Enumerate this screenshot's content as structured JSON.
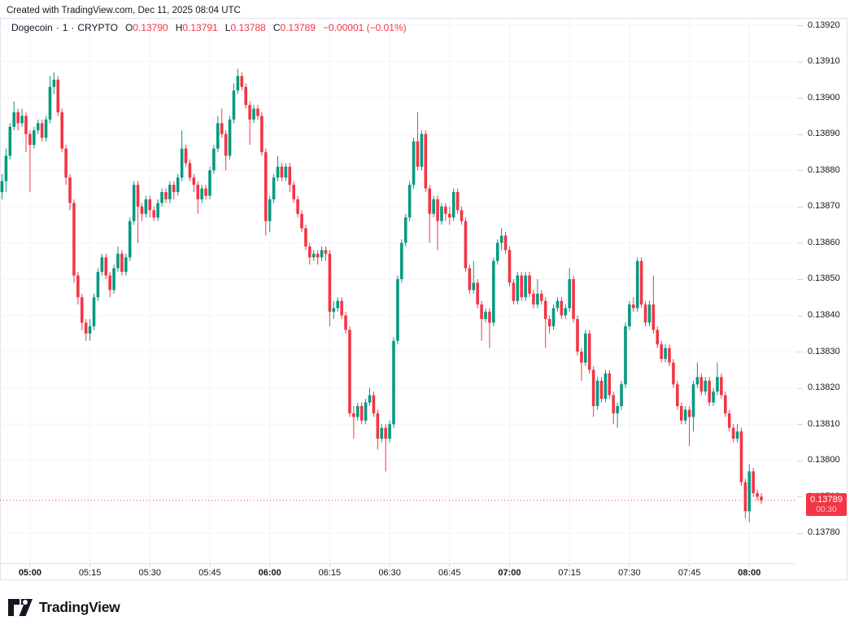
{
  "header": {
    "credit": "Created with TradingView.com, Dec 11, 2025 08:04 UTC"
  },
  "legend": {
    "symbol": "Dogecoin",
    "sep": "·",
    "interval": "1",
    "exchange": "CRYPTO",
    "o_label": "O",
    "o_value": "0.13790",
    "h_label": "H",
    "h_value": "0.13791",
    "l_label": "L",
    "l_value": "0.13788",
    "c_label": "C",
    "c_value": "0.13789",
    "change": "−0.00001 (−0.01%)"
  },
  "colors": {
    "up": "#089981",
    "down": "#F23645",
    "grid": "#F0F3FA",
    "tick": "#D1D4DC",
    "separator": "#E0E3EB",
    "text": "#131722",
    "price_line": "#F23645",
    "label_bg": "#F23645",
    "label_text": "#FFFFFF",
    "background": "#FFFFFF"
  },
  "price_axis": {
    "labels": [
      "0.13920",
      "0.13910",
      "0.13900",
      "0.13890",
      "0.13880",
      "0.13870",
      "0.13860",
      "0.13850",
      "0.13840",
      "0.13830",
      "0.13820",
      "0.13810",
      "0.13800",
      "0.13790",
      "0.13780"
    ]
  },
  "time_axis": {
    "labels": [
      {
        "text": "05:00",
        "bold": true
      },
      {
        "text": "05:15",
        "bold": false
      },
      {
        "text": "05:30",
        "bold": false
      },
      {
        "text": "05:45",
        "bold": false
      },
      {
        "text": "06:00",
        "bold": true
      },
      {
        "text": "06:15",
        "bold": false
      },
      {
        "text": "06:30",
        "bold": false
      },
      {
        "text": "06:45",
        "bold": false
      },
      {
        "text": "07:00",
        "bold": true
      },
      {
        "text": "07:15",
        "bold": false
      },
      {
        "text": "07:30",
        "bold": false
      },
      {
        "text": "07:45",
        "bold": false
      },
      {
        "text": "08:00",
        "bold": true
      }
    ]
  },
  "price_label": {
    "price": "0.13789",
    "countdown": "00:30"
  },
  "logo": {
    "text": "TradingView"
  },
  "chart_data": {
    "type": "candlestick",
    "title": "Dogecoin · 1 · CRYPTO",
    "symbol": "Dogecoin",
    "exchange": "CRYPTO",
    "interval": "1m",
    "start_time": "04:53",
    "end_time": "08:03",
    "ylim": [
      0.1378,
      0.1392
    ],
    "y_step": 0.0001,
    "grid": true,
    "price_line": 0.13789,
    "last_bar": {
      "open": 0.1379,
      "high": 0.13791,
      "low": 0.13788,
      "close": 0.13789
    },
    "candles_format": [
      "open",
      "high",
      "low",
      "close"
    ],
    "candles": [
      [
        0.13874,
        0.13879,
        0.13872,
        0.13877
      ],
      [
        0.13877,
        0.13886,
        0.13874,
        0.13884
      ],
      [
        0.13884,
        0.13893,
        0.13883,
        0.13892
      ],
      [
        0.13892,
        0.13899,
        0.13891,
        0.13896
      ],
      [
        0.13896,
        0.13897,
        0.13891,
        0.13893
      ],
      [
        0.13893,
        0.13897,
        0.13892,
        0.13895
      ],
      [
        0.13895,
        0.13896,
        0.13885,
        0.1389
      ],
      [
        0.1389,
        0.13891,
        0.13874,
        0.13887
      ],
      [
        0.13887,
        0.13892,
        0.13886,
        0.13891
      ],
      [
        0.13891,
        0.13894,
        0.1389,
        0.13893
      ],
      [
        0.13893,
        0.13894,
        0.13888,
        0.13889
      ],
      [
        0.13889,
        0.13895,
        0.13888,
        0.13894
      ],
      [
        0.13894,
        0.13906,
        0.13893,
        0.13903
      ],
      [
        0.13903,
        0.13907,
        0.13901,
        0.13905
      ],
      [
        0.13905,
        0.13906,
        0.13895,
        0.13896
      ],
      [
        0.13896,
        0.13897,
        0.13885,
        0.13886
      ],
      [
        0.13886,
        0.13887,
        0.13876,
        0.13878
      ],
      [
        0.13878,
        0.13879,
        0.13869,
        0.13871
      ],
      [
        0.13871,
        0.13872,
        0.13849,
        0.13851
      ],
      [
        0.13851,
        0.13852,
        0.13843,
        0.13845
      ],
      [
        0.13845,
        0.13846,
        0.13836,
        0.13838
      ],
      [
        0.13838,
        0.13839,
        0.13833,
        0.13835
      ],
      [
        0.13835,
        0.13839,
        0.13833,
        0.13837
      ],
      [
        0.13837,
        0.13846,
        0.13836,
        0.13845
      ],
      [
        0.13845,
        0.13853,
        0.13844,
        0.13852
      ],
      [
        0.13852,
        0.13857,
        0.13851,
        0.13856
      ],
      [
        0.13856,
        0.13857,
        0.1385,
        0.13851
      ],
      [
        0.13851,
        0.13852,
        0.13845,
        0.13847
      ],
      [
        0.13847,
        0.13854,
        0.13846,
        0.13853
      ],
      [
        0.13853,
        0.13859,
        0.13852,
        0.13857
      ],
      [
        0.13857,
        0.13858,
        0.13851,
        0.13852
      ],
      [
        0.13852,
        0.13857,
        0.13851,
        0.13856
      ],
      [
        0.13856,
        0.13867,
        0.13855,
        0.13866
      ],
      [
        0.13866,
        0.13877,
        0.13865,
        0.13876
      ],
      [
        0.13876,
        0.13877,
        0.1386,
        0.1387
      ],
      [
        0.1387,
        0.13871,
        0.13866,
        0.13868
      ],
      [
        0.13868,
        0.13873,
        0.13867,
        0.13872
      ],
      [
        0.13872,
        0.13873,
        0.13867,
        0.13869
      ],
      [
        0.13869,
        0.1387,
        0.13866,
        0.13867
      ],
      [
        0.13867,
        0.13872,
        0.13866,
        0.13871
      ],
      [
        0.13871,
        0.13875,
        0.1387,
        0.13874
      ],
      [
        0.13874,
        0.13875,
        0.13871,
        0.13872
      ],
      [
        0.13872,
        0.13877,
        0.13871,
        0.13876
      ],
      [
        0.13876,
        0.13877,
        0.13872,
        0.13874
      ],
      [
        0.13874,
        0.13879,
        0.13873,
        0.13878
      ],
      [
        0.13878,
        0.13891,
        0.13877,
        0.13886
      ],
      [
        0.13886,
        0.13887,
        0.13881,
        0.13882
      ],
      [
        0.13882,
        0.13883,
        0.13877,
        0.13878
      ],
      [
        0.13878,
        0.13879,
        0.13874,
        0.13876
      ],
      [
        0.13876,
        0.13877,
        0.13868,
        0.13872
      ],
      [
        0.13872,
        0.13876,
        0.13871,
        0.13875
      ],
      [
        0.13875,
        0.13876,
        0.13872,
        0.13873
      ],
      [
        0.13873,
        0.13881,
        0.13872,
        0.1388
      ],
      [
        0.1388,
        0.13887,
        0.13879,
        0.13886
      ],
      [
        0.13886,
        0.13895,
        0.13885,
        0.13893
      ],
      [
        0.13893,
        0.13897,
        0.13889,
        0.1389
      ],
      [
        0.1389,
        0.13891,
        0.1388,
        0.13884
      ],
      [
        0.13884,
        0.13895,
        0.13883,
        0.13894
      ],
      [
        0.13894,
        0.13904,
        0.13893,
        0.13902
      ],
      [
        0.13902,
        0.13908,
        0.13901,
        0.13906
      ],
      [
        0.13906,
        0.13907,
        0.13902,
        0.13903
      ],
      [
        0.13903,
        0.13904,
        0.13897,
        0.13898
      ],
      [
        0.13898,
        0.13899,
        0.13887,
        0.13894
      ],
      [
        0.13894,
        0.13898,
        0.13893,
        0.13897
      ],
      [
        0.13897,
        0.13898,
        0.13894,
        0.13895
      ],
      [
        0.13895,
        0.13896,
        0.13884,
        0.13885
      ],
      [
        0.13885,
        0.13886,
        0.13862,
        0.13866
      ],
      [
        0.13866,
        0.13873,
        0.13863,
        0.13872
      ],
      [
        0.13872,
        0.13879,
        0.13871,
        0.13878
      ],
      [
        0.13878,
        0.13884,
        0.13877,
        0.13881
      ],
      [
        0.13881,
        0.13882,
        0.13877,
        0.13878
      ],
      [
        0.13878,
        0.13882,
        0.13877,
        0.13881
      ],
      [
        0.13881,
        0.13882,
        0.13874,
        0.13876
      ],
      [
        0.13876,
        0.13877,
        0.13871,
        0.13872
      ],
      [
        0.13872,
        0.13873,
        0.13867,
        0.13868
      ],
      [
        0.13868,
        0.13869,
        0.13863,
        0.13864
      ],
      [
        0.13864,
        0.13865,
        0.13858,
        0.13859
      ],
      [
        0.13859,
        0.1386,
        0.13854,
        0.13856
      ],
      [
        0.13856,
        0.13858,
        0.13855,
        0.13857
      ],
      [
        0.13857,
        0.13858,
        0.13854,
        0.13856
      ],
      [
        0.13856,
        0.13859,
        0.13855,
        0.13858
      ],
      [
        0.13858,
        0.13859,
        0.13855,
        0.13857
      ],
      [
        0.13857,
        0.13858,
        0.13837,
        0.13841
      ],
      [
        0.13841,
        0.13844,
        0.13839,
        0.13842
      ],
      [
        0.13842,
        0.13845,
        0.13841,
        0.13844
      ],
      [
        0.13844,
        0.13845,
        0.13839,
        0.1384
      ],
      [
        0.1384,
        0.13841,
        0.13835,
        0.13836
      ],
      [
        0.13836,
        0.13837,
        0.13812,
        0.13813
      ],
      [
        0.13813,
        0.13815,
        0.13806,
        0.13812
      ],
      [
        0.13812,
        0.13816,
        0.13811,
        0.13815
      ],
      [
        0.13815,
        0.13816,
        0.1381,
        0.13811
      ],
      [
        0.13811,
        0.13817,
        0.1381,
        0.13816
      ],
      [
        0.13816,
        0.1382,
        0.13815,
        0.13818
      ],
      [
        0.13818,
        0.13819,
        0.13812,
        0.13813
      ],
      [
        0.13813,
        0.13814,
        0.13803,
        0.13806
      ],
      [
        0.13806,
        0.1381,
        0.13805,
        0.13809
      ],
      [
        0.13809,
        0.1381,
        0.13797,
        0.13806
      ],
      [
        0.13806,
        0.13811,
        0.13805,
        0.1381
      ],
      [
        0.1381,
        0.13834,
        0.13809,
        0.13833
      ],
      [
        0.13833,
        0.13851,
        0.13832,
        0.1385
      ],
      [
        0.1385,
        0.13861,
        0.13849,
        0.1386
      ],
      [
        0.1386,
        0.13868,
        0.13859,
        0.13867
      ],
      [
        0.13867,
        0.13877,
        0.13866,
        0.13876
      ],
      [
        0.13876,
        0.13889,
        0.13875,
        0.13888
      ],
      [
        0.13888,
        0.13896,
        0.1388,
        0.13881
      ],
      [
        0.13881,
        0.13891,
        0.1388,
        0.1389
      ],
      [
        0.1389,
        0.13891,
        0.13874,
        0.13875
      ],
      [
        0.13875,
        0.13876,
        0.1386,
        0.13868
      ],
      [
        0.13868,
        0.13873,
        0.13867,
        0.13872
      ],
      [
        0.13872,
        0.13873,
        0.13858,
        0.13866
      ],
      [
        0.13866,
        0.13871,
        0.13865,
        0.1387
      ],
      [
        0.1387,
        0.13871,
        0.13866,
        0.13868
      ],
      [
        0.13868,
        0.1387,
        0.13865,
        0.13867
      ],
      [
        0.13867,
        0.13875,
        0.13866,
        0.13874
      ],
      [
        0.13874,
        0.13875,
        0.13868,
        0.13869
      ],
      [
        0.13869,
        0.1387,
        0.13865,
        0.13866
      ],
      [
        0.13866,
        0.13867,
        0.13852,
        0.13853
      ],
      [
        0.13853,
        0.13854,
        0.13846,
        0.13847
      ],
      [
        0.13847,
        0.13855,
        0.13846,
        0.13849
      ],
      [
        0.13849,
        0.1385,
        0.13842,
        0.13843
      ],
      [
        0.13843,
        0.13844,
        0.13833,
        0.13839
      ],
      [
        0.13839,
        0.13842,
        0.13838,
        0.13841
      ],
      [
        0.13841,
        0.13842,
        0.13831,
        0.13838
      ],
      [
        0.13838,
        0.13856,
        0.13837,
        0.13855
      ],
      [
        0.13855,
        0.13861,
        0.13854,
        0.1386
      ],
      [
        0.1386,
        0.13864,
        0.13858,
        0.13862
      ],
      [
        0.13862,
        0.13863,
        0.13857,
        0.13858
      ],
      [
        0.13858,
        0.13859,
        0.13848,
        0.13849
      ],
      [
        0.13849,
        0.1385,
        0.13843,
        0.13844
      ],
      [
        0.13844,
        0.13852,
        0.13843,
        0.13851
      ],
      [
        0.13851,
        0.13852,
        0.13844,
        0.13845
      ],
      [
        0.13845,
        0.13852,
        0.13844,
        0.13851
      ],
      [
        0.13851,
        0.13852,
        0.13845,
        0.13846
      ],
      [
        0.13846,
        0.13847,
        0.13842,
        0.13843
      ],
      [
        0.13843,
        0.1385,
        0.13842,
        0.13846
      ],
      [
        0.13846,
        0.13847,
        0.13843,
        0.13844
      ],
      [
        0.13844,
        0.13845,
        0.13831,
        0.13839
      ],
      [
        0.13839,
        0.1384,
        0.13835,
        0.13837
      ],
      [
        0.13837,
        0.13843,
        0.13836,
        0.13842
      ],
      [
        0.13842,
        0.13845,
        0.13841,
        0.13844
      ],
      [
        0.13844,
        0.13845,
        0.13839,
        0.1384
      ],
      [
        0.1384,
        0.13843,
        0.13839,
        0.13842
      ],
      [
        0.13842,
        0.13853,
        0.13841,
        0.1385
      ],
      [
        0.1385,
        0.13851,
        0.13838,
        0.13839
      ],
      [
        0.13839,
        0.1384,
        0.13829,
        0.1383
      ],
      [
        0.1383,
        0.13831,
        0.13822,
        0.13827
      ],
      [
        0.13827,
        0.13836,
        0.13826,
        0.13835
      ],
      [
        0.13835,
        0.13836,
        0.13824,
        0.13825
      ],
      [
        0.13825,
        0.13826,
        0.13812,
        0.13815
      ],
      [
        0.13815,
        0.13823,
        0.13814,
        0.13822
      ],
      [
        0.13822,
        0.13823,
        0.13816,
        0.13817
      ],
      [
        0.13817,
        0.13825,
        0.13816,
        0.13824
      ],
      [
        0.13824,
        0.13825,
        0.13817,
        0.13818
      ],
      [
        0.13818,
        0.13819,
        0.1381,
        0.13813
      ],
      [
        0.13813,
        0.13816,
        0.13809,
        0.13815
      ],
      [
        0.13815,
        0.13822,
        0.13814,
        0.13821
      ],
      [
        0.13821,
        0.13838,
        0.1382,
        0.13837
      ],
      [
        0.13837,
        0.13844,
        0.13836,
        0.13843
      ],
      [
        0.13843,
        0.13845,
        0.13841,
        0.13842
      ],
      [
        0.13842,
        0.13856,
        0.13841,
        0.13855
      ],
      [
        0.13855,
        0.13856,
        0.13842,
        0.13843
      ],
      [
        0.13843,
        0.13844,
        0.13837,
        0.13838
      ],
      [
        0.13838,
        0.13844,
        0.13837,
        0.13843
      ],
      [
        0.13843,
        0.13851,
        0.13835,
        0.13836
      ],
      [
        0.13836,
        0.13837,
        0.13831,
        0.13832
      ],
      [
        0.13832,
        0.13833,
        0.13827,
        0.13828
      ],
      [
        0.13828,
        0.13832,
        0.13827,
        0.13831
      ],
      [
        0.13831,
        0.13832,
        0.13826,
        0.13827
      ],
      [
        0.13827,
        0.13828,
        0.1382,
        0.13821
      ],
      [
        0.13821,
        0.13822,
        0.13814,
        0.13815
      ],
      [
        0.13815,
        0.13816,
        0.1381,
        0.13811
      ],
      [
        0.13811,
        0.13815,
        0.1381,
        0.13814
      ],
      [
        0.13814,
        0.13815,
        0.13804,
        0.13812
      ],
      [
        0.13812,
        0.13822,
        0.13808,
        0.13821
      ],
      [
        0.13821,
        0.13827,
        0.1382,
        0.13823
      ],
      [
        0.13823,
        0.13824,
        0.13818,
        0.13819
      ],
      [
        0.13819,
        0.13823,
        0.13818,
        0.13822
      ],
      [
        0.13822,
        0.13823,
        0.13815,
        0.13816
      ],
      [
        0.13816,
        0.1382,
        0.13815,
        0.13819
      ],
      [
        0.13819,
        0.13827,
        0.13818,
        0.13823
      ],
      [
        0.13823,
        0.13824,
        0.13817,
        0.13818
      ],
      [
        0.13818,
        0.13819,
        0.13812,
        0.13813
      ],
      [
        0.13813,
        0.13814,
        0.13808,
        0.13809
      ],
      [
        0.13809,
        0.1381,
        0.13805,
        0.13806
      ],
      [
        0.13806,
        0.1381,
        0.13805,
        0.13808
      ],
      [
        0.13808,
        0.13809,
        0.13793,
        0.13794
      ],
      [
        0.13794,
        0.13795,
        0.13784,
        0.13786
      ],
      [
        0.13786,
        0.13799,
        0.13783,
        0.13797
      ],
      [
        0.13797,
        0.13798,
        0.1379,
        0.13791
      ],
      [
        0.13791,
        0.13792,
        0.13789,
        0.1379
      ],
      [
        0.1379,
        0.13791,
        0.13788,
        0.13789
      ]
    ]
  }
}
